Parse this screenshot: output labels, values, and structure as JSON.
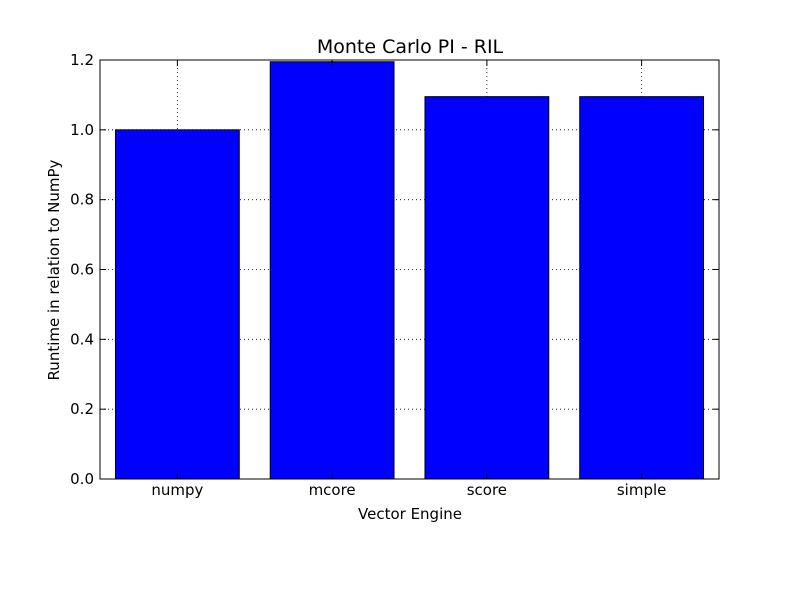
{
  "chart_data": {
    "type": "bar",
    "title": "Monte Carlo PI - RIL",
    "xlabel": "Vector Engine",
    "ylabel": "Runtime in relation to NumPy",
    "categories": [
      "numpy",
      "mcore",
      "score",
      "simple"
    ],
    "values": [
      1.0,
      1.195,
      1.095,
      1.095
    ],
    "ylim": [
      0,
      1.2
    ],
    "yticks": [
      0.0,
      0.2,
      0.4,
      0.6,
      0.8,
      1.0,
      1.2
    ],
    "ytick_labels": [
      "0.0",
      "0.2",
      "0.4",
      "0.6",
      "0.8",
      "1.0",
      "1.2"
    ],
    "grid": true,
    "bar_color": "#0000ff"
  }
}
